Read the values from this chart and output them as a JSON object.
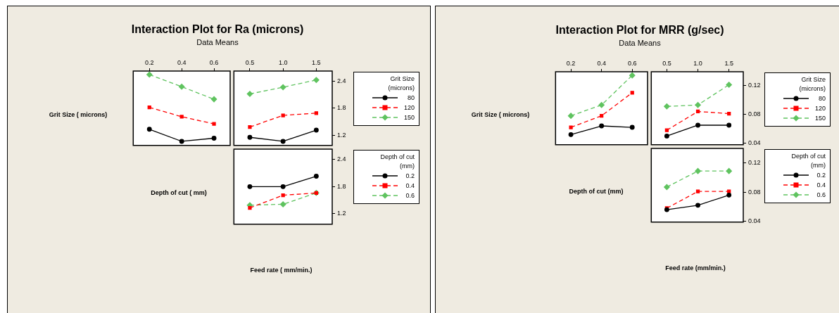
{
  "chart_data": [
    {
      "type": "line",
      "title": "Interaction Plot for Ra (microns)",
      "subtitle": "Data Means",
      "ylabel": "Grit Size ( microns)",
      "x": [
        0.2,
        0.4,
        0.6
      ],
      "xlim": [
        0.1,
        0.7
      ],
      "xticks": [
        0.2,
        0.4,
        0.6
      ],
      "ylim": [
        0.97,
        2.63
      ],
      "yticks": [
        1.2,
        1.8,
        2.4
      ],
      "tick_labels": "x",
      "series": [
        {
          "color": "#000000",
          "marker": "circle",
          "line_style": "solid",
          "values": [
            1.33,
            1.06,
            1.13
          ]
        },
        {
          "color": "#ff0000",
          "marker": "square",
          "line_style": "dashed",
          "values": [
            1.82,
            1.61,
            1.45
          ]
        },
        {
          "color": "#5fc35f",
          "marker": "diamond",
          "line_style": "dashed",
          "values": [
            2.55,
            2.28,
            2.0
          ]
        }
      ]
    },
    {
      "type": "line",
      "legend": "right",
      "legend_title": "Grit Size (microns)",
      "x": [
        0.5,
        1.0,
        1.5
      ],
      "xlim": [
        0.26,
        1.74
      ],
      "xticks": [
        0.5,
        {
          "value": 1.0,
          "label": "1.0"
        },
        1.5
      ],
      "ylim": [
        0.97,
        2.63
      ],
      "yticks": [
        1.2,
        1.8,
        2.4
      ],
      "series": [
        {
          "name": "80",
          "color": "#000000",
          "marker": "circle",
          "line_style": "solid",
          "values": [
            1.15,
            1.06,
            1.31
          ]
        },
        {
          "name": "120",
          "color": "#ff0000",
          "marker": "square",
          "line_style": "dashed",
          "values": [
            1.38,
            1.64,
            1.69
          ]
        },
        {
          "name": "150",
          "color": "#5fc35f",
          "marker": "diamond",
          "line_style": "dashed",
          "values": [
            2.12,
            2.27,
            2.43
          ]
        }
      ]
    },
    {
      "type": "line",
      "legend": "right",
      "legend_title": "Depth of cut (mm)",
      "ylabel": "Depth of cut ( mm)",
      "xlabel": "Feed rate ( mm/min.)",
      "x": [
        0.5,
        1.0,
        1.5
      ],
      "xlim": [
        0.26,
        1.74
      ],
      "ylim": [
        0.97,
        2.63
      ],
      "yticks": [
        1.2,
        1.8,
        2.4
      ],
      "tick_labels": "y",
      "series": [
        {
          "name": "0.2",
          "color": "#000000",
          "marker": "circle",
          "line_style": "solid",
          "values": [
            1.8,
            1.8,
            2.03
          ]
        },
        {
          "name": "0.4",
          "color": "#ff0000",
          "marker": "square",
          "line_style": "dashed",
          "values": [
            1.33,
            1.61,
            1.66
          ]
        },
        {
          "name": "0.6",
          "color": "#5fc35f",
          "marker": "diamond",
          "line_style": "dashed",
          "values": [
            1.39,
            1.41,
            1.66
          ]
        }
      ]
    },
    {
      "type": "line",
      "title": "Interaction Plot for MRR (g/sec)",
      "subtitle": "Data Means",
      "ylabel": "Grit Size ( microns)",
      "x": [
        0.2,
        0.4,
        0.6
      ],
      "xlim": [
        0.1,
        0.7
      ],
      "xticks": [
        0.2,
        0.4,
        0.6
      ],
      "ylim": [
        0.038,
        0.139
      ],
      "yticks": [
        0.04,
        0.08,
        0.12
      ],
      "tick_labels": "x",
      "series": [
        {
          "color": "#000000",
          "marker": "circle",
          "line_style": "solid",
          "values": [
            0.052,
            0.064,
            0.062
          ]
        },
        {
          "color": "#ff0000",
          "marker": "square",
          "line_style": "dashed",
          "values": [
            0.062,
            0.078,
            0.11
          ]
        },
        {
          "color": "#5fc35f",
          "marker": "diamond",
          "line_style": "dashed",
          "values": [
            0.078,
            0.093,
            0.134
          ]
        }
      ]
    },
    {
      "type": "line",
      "legend": "right",
      "legend_title": "Grit Size (microns)",
      "x": [
        0.5,
        1.0,
        1.5
      ],
      "xlim": [
        0.25,
        1.73
      ],
      "xticks": [
        0.5,
        {
          "value": 1.0,
          "label": "1.0"
        },
        1.5
      ],
      "ylim": [
        0.038,
        0.139
      ],
      "yticks": [
        0.04,
        0.08,
        0.12
      ],
      "series": [
        {
          "name": "80",
          "color": "#000000",
          "marker": "circle",
          "line_style": "solid",
          "values": [
            0.05,
            0.065,
            0.065
          ]
        },
        {
          "name": "120",
          "color": "#ff0000",
          "marker": "square",
          "line_style": "dashed",
          "values": [
            0.058,
            0.084,
            0.081
          ]
        },
        {
          "name": "150",
          "color": "#5fc35f",
          "marker": "diamond",
          "line_style": "dashed",
          "values": [
            0.091,
            0.093,
            0.121
          ]
        }
      ]
    },
    {
      "type": "line",
      "legend": "right",
      "legend_title": "Depth of cut (mm)",
      "ylabel": "Depth of cut (mm)",
      "xlabel": "Feed rate (mm/min.)",
      "x": [
        0.5,
        1.0,
        1.5
      ],
      "xlim": [
        0.25,
        1.73
      ],
      "ylim": [
        0.039,
        0.14
      ],
      "yticks": [
        0.04,
        0.08,
        0.12
      ],
      "tick_labels": "y",
      "series": [
        {
          "name": "0.2",
          "color": "#000000",
          "marker": "circle",
          "line_style": "solid",
          "values": [
            0.056,
            0.062,
            0.076
          ]
        },
        {
          "name": "0.4",
          "color": "#ff0000",
          "marker": "square",
          "line_style": "dashed",
          "values": [
            0.058,
            0.081,
            0.081
          ]
        },
        {
          "name": "0.6",
          "color": "#5fc35f",
          "marker": "diamond",
          "line_style": "dashed",
          "values": [
            0.087,
            0.109,
            0.109
          ]
        }
      ]
    }
  ]
}
